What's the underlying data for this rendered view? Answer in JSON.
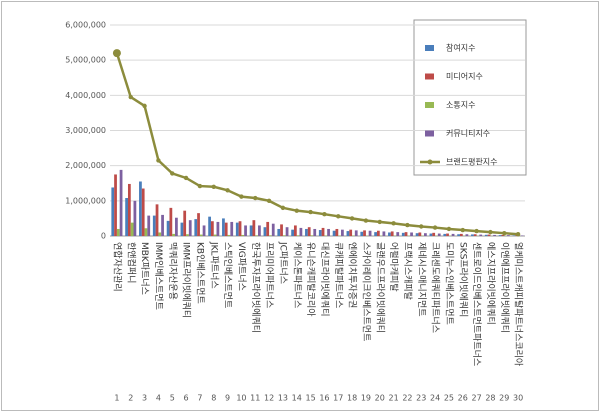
{
  "chart_data": {
    "type": "bar-line",
    "categories": [
      "연합자산관리",
      "한앤컴퍼니",
      "MBK파트너스",
      "IMM인베스트먼트",
      "맥쿼리자산운용",
      "IMM프라이빗에쿼티",
      "KB인베스트먼트",
      "JKL파트너스",
      "스틱인베스트먼트",
      "VIG파트너스",
      "한국투자프라이빗에쿼티",
      "프리미어파트너스",
      "JC파트너스",
      "케이스톤파트너스",
      "유니슨캐피탈코리아",
      "대신프라이빗에쿼티",
      "큐캐피탈파트너스",
      "엔에이치투자증권",
      "스카이레이크인베스트먼트",
      "글랜우드프라이빗에쿼티",
      "어펄마캐피탈",
      "프랙시스캐피탈",
      "제네시스매니지먼트",
      "크레센도에쿼티파트너스",
      "도미누스인베스트먼트",
      "SKS프라이빗에쿼티",
      "센트로이드인베스트먼트파트너스",
      "에스지프라이빗에쿼티",
      "이앤에프프라이빗에쿼티",
      "얼케미스트캐피탈파트너스코리아"
    ],
    "ranks": [
      1,
      2,
      3,
      4,
      5,
      6,
      7,
      8,
      9,
      10,
      11,
      12,
      13,
      14,
      15,
      16,
      17,
      18,
      19,
      20,
      21,
      22,
      23,
      24,
      25,
      26,
      27,
      28,
      29,
      30
    ],
    "series": [
      {
        "name": "참여지수",
        "color": "#4a7ebb",
        "values": [
          1380000,
          1080000,
          1550000,
          580000,
          430000,
          380000,
          480000,
          550000,
          500000,
          380000,
          300000,
          250000,
          200000,
          180000,
          200000,
          170000,
          150000,
          140000,
          120000,
          110000,
          100000,
          90000,
          80000,
          70000,
          60000,
          50000,
          45000,
          35000,
          25000,
          15000
        ]
      },
      {
        "name": "미디어지수",
        "color": "#be4b48",
        "values": [
          1750000,
          1480000,
          1350000,
          900000,
          800000,
          720000,
          650000,
          420000,
          380000,
          420000,
          450000,
          400000,
          330000,
          300000,
          250000,
          230000,
          200000,
          180000,
          160000,
          150000,
          130000,
          110000,
          100000,
          90000,
          70000,
          60000,
          50000,
          40000,
          30000,
          20000
        ]
      },
      {
        "name": "소통지수",
        "color": "#98b954",
        "values": [
          200000,
          380000,
          220000,
          100000,
          60000,
          50000,
          40000,
          40000,
          30000,
          30000,
          20000,
          20000,
          20000,
          20000,
          20000,
          15000,
          15000,
          15000,
          10000,
          10000,
          10000,
          10000,
          10000,
          8000,
          8000,
          6000,
          6000,
          5000,
          5000,
          4000
        ]
      },
      {
        "name": "커뮤니티지수",
        "color": "#7d60a0",
        "values": [
          1880000,
          1000000,
          580000,
          600000,
          520000,
          450000,
          300000,
          400000,
          400000,
          300000,
          300000,
          350000,
          250000,
          230000,
          200000,
          200000,
          180000,
          160000,
          150000,
          130000,
          110000,
          100000,
          80000,
          70000,
          60000,
          50000,
          40000,
          30000,
          25000,
          15000
        ]
      },
      {
        "name": "브랜드평판지수",
        "color": "#8c8c3c",
        "line": true,
        "values": [
          5200000,
          3950000,
          3700000,
          2150000,
          1780000,
          1650000,
          1420000,
          1400000,
          1300000,
          1120000,
          1080000,
          1000000,
          800000,
          720000,
          680000,
          620000,
          560000,
          500000,
          440000,
          400000,
          360000,
          310000,
          270000,
          240000,
          200000,
          170000,
          140000,
          110000,
          80000,
          50000
        ]
      }
    ],
    "ylim": [
      0,
      6000000
    ],
    "yticks": [
      0,
      {
        "value": 1000000,
        "label": "1,000,000"
      },
      {
        "value": 2000000,
        "label": "2,000,000"
      },
      {
        "value": 3000000,
        "label": "3,000,000"
      },
      {
        "value": 4000000,
        "label": "4,000,000"
      },
      {
        "value": 5000000,
        "label": "5,000,000"
      },
      {
        "value": 6000000,
        "label": "6,000,000"
      }
    ],
    "grid": true
  }
}
